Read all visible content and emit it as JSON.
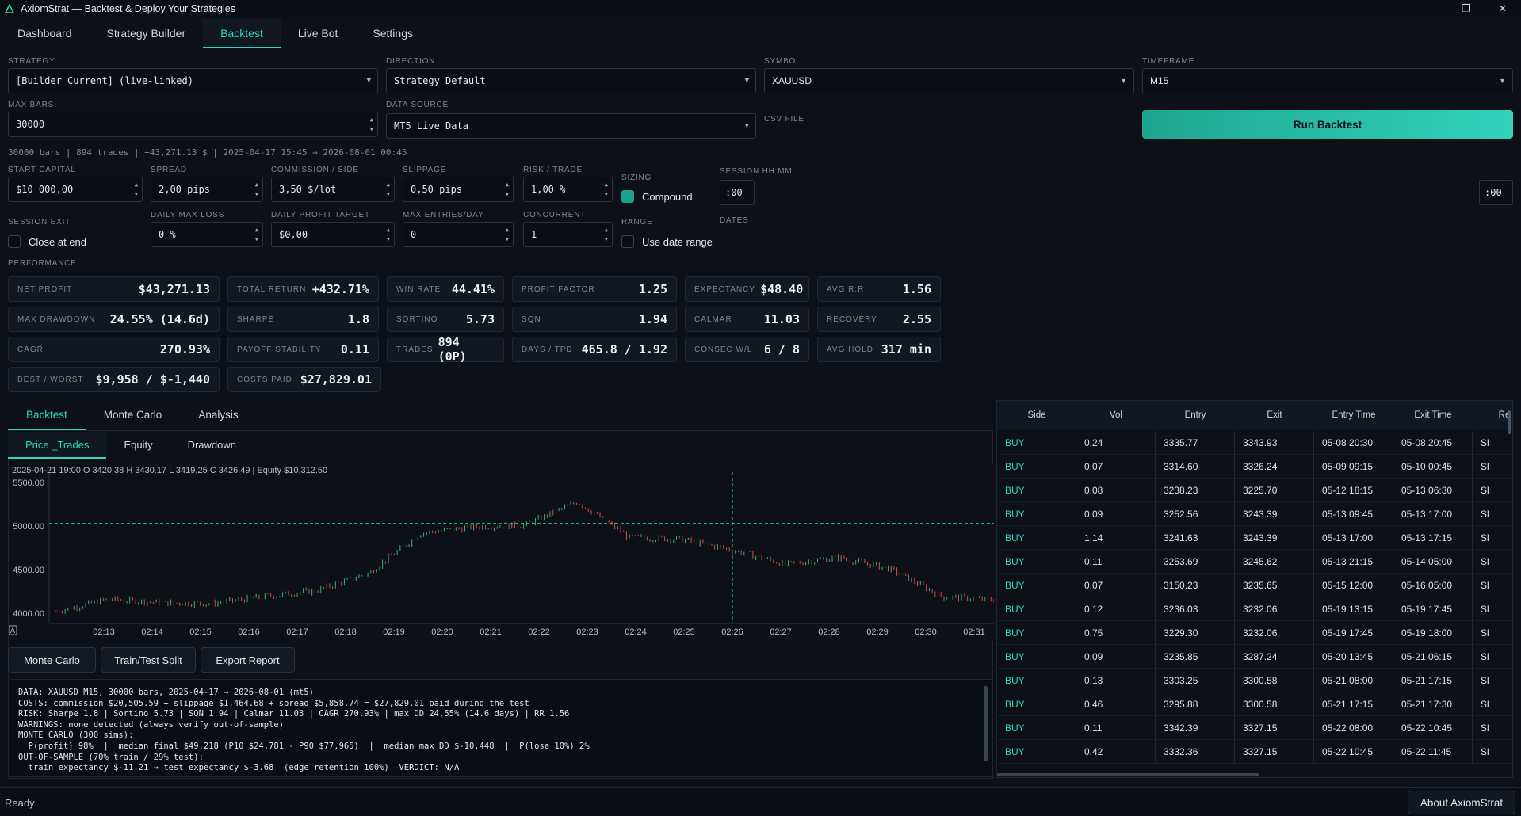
{
  "window": {
    "title": "AxiomStrat — Backtest & Deploy Your Strategies",
    "controls": [
      "—",
      "❐",
      "✕"
    ]
  },
  "top_tabs": [
    "Dashboard",
    "Strategy Builder",
    "Backtest",
    "Live Bot",
    "Settings"
  ],
  "active_top_tab": "Backtest",
  "form": {
    "strategy": {
      "label": "STRATEGY",
      "value": "[Builder Current]  (live-linked)"
    },
    "direction": {
      "label": "DIRECTION",
      "value": "Strategy Default"
    },
    "symbol": {
      "label": "SYMBOL",
      "value": "XAUUSD"
    },
    "timeframe": {
      "label": "TIMEFRAME",
      "value": "M15"
    },
    "max_bars": {
      "label": "MAX BARS",
      "value": "30000"
    },
    "data_source": {
      "label": "DATA SOURCE",
      "value": "MT5 Live Data"
    },
    "csv_file": {
      "label": "CSV FILE"
    },
    "run_button": "Run Backtest",
    "summary": "30000 bars | 894 trades | +43,271.13 $ | 2025-04-17 15:45 → 2026-08-01 00:45",
    "start_capital": {
      "label": "START CAPITAL",
      "value": "$10 000,00"
    },
    "spread": {
      "label": "SPREAD",
      "value": "2,00 pips"
    },
    "commission": {
      "label": "COMMISSION / SIDE",
      "value": "3,50 $/lot"
    },
    "slippage": {
      "label": "SLIPPAGE",
      "value": "0,50 pips"
    },
    "risk_trade": {
      "label": "RISK / TRADE",
      "value": "1,00 %"
    },
    "sizing": {
      "label": "SIZING",
      "value": "Compound"
    },
    "session": {
      "label": "SESSION HH:MM",
      "start": ":00",
      "sep": "–",
      "end": ":00"
    },
    "session_exit": {
      "label": "SESSION EXIT",
      "value": "Close at end"
    },
    "daily_max_loss": {
      "label": "DAILY MAX LOSS",
      "value": "0 %"
    },
    "daily_profit_target": {
      "label": "DAILY PROFIT TARGET",
      "value": "$0,00"
    },
    "max_entries": {
      "label": "MAX ENTRIES/DAY",
      "value": "0"
    },
    "concurrent": {
      "label": "CONCURRENT",
      "value": "1"
    },
    "range": {
      "label": "RANGE",
      "value": "Use date range"
    },
    "dates": {
      "label": "DATES"
    }
  },
  "performance": {
    "label": "PERFORMANCE",
    "cards": [
      {
        "k": "NET PROFIT",
        "v": "$43,271.13"
      },
      {
        "k": "TOTAL RETURN",
        "v": "+432.71%"
      },
      {
        "k": "WIN RATE",
        "v": "44.41%"
      },
      {
        "k": "PROFIT FACTOR",
        "v": "1.25"
      },
      {
        "k": "EXPECTANCY",
        "v": "$48.40"
      },
      {
        "k": "AVG R:R",
        "v": "1.56"
      },
      {
        "k": "MAX DRAWDOWN",
        "v": "24.55% (14.6d)"
      },
      {
        "k": "SHARPE",
        "v": "1.8"
      },
      {
        "k": "SORTINO",
        "v": "5.73"
      },
      {
        "k": "SQN",
        "v": "1.94"
      },
      {
        "k": "CALMAR",
        "v": "11.03"
      },
      {
        "k": "RECOVERY",
        "v": "2.55"
      },
      {
        "k": "CAGR",
        "v": "270.93%"
      },
      {
        "k": "PAYOFF STABILITY",
        "v": "0.11"
      },
      {
        "k": "TRADES",
        "v": "894 (0P)"
      },
      {
        "k": "DAYS / TPD",
        "v": "465.8 / 1.92"
      },
      {
        "k": "CONSEC W/L",
        "v": "6 / 8"
      },
      {
        "k": "AVG HOLD",
        "v": "317 min"
      },
      {
        "k": "BEST / WORST",
        "v": "$9,958 / $-1,440"
      },
      {
        "k": "COSTS PAID",
        "v": "$27,829.01"
      }
    ]
  },
  "lower_tabs": [
    "Backtest",
    "Monte Carlo",
    "Analysis"
  ],
  "chart_tabs": [
    "Price _Trades",
    "Equity",
    "Drawdown"
  ],
  "chart_data": {
    "type": "line",
    "ohlc_readout": "2025-04-21 19:00 O 3420.38 H 3430.17 L 3419.25 C 3426.49 | Equity $10,312.50",
    "x": [
      "02:13",
      "02:14",
      "02:15",
      "02:16",
      "02:17",
      "02:18",
      "02:19",
      "02:20",
      "02:21",
      "02:22",
      "02:23",
      "02:24",
      "02:25",
      "02:26",
      "02:27",
      "02:28",
      "02:29",
      "02:30",
      "02:31"
    ],
    "series": [
      {
        "values": [
          4020,
          4160,
          4120,
          4110,
          4190,
          4260,
          4460,
          4920,
          4990,
          5010,
          5280,
          4870,
          4850,
          4720,
          4560,
          4640,
          4510,
          4190,
          4150
        ]
      }
    ],
    "y_ticks": [
      "5500.00",
      "5000.00",
      "4500.00",
      "4000.00"
    ],
    "ylim": [
      3880,
      5620
    ],
    "reference_line": 5030,
    "crosshair_x": "02:26",
    "corner_marker": "A"
  },
  "actions": [
    "Monte Carlo",
    "Train/Test Split",
    "Export Report"
  ],
  "log_lines": [
    "DATA: XAUUSD M15, 30000 bars, 2025-04-17 → 2026-08-01 (mt5)",
    "COSTS: commission $20,505.59 + slippage $1,464.68 + spread $5,858.74 = $27,829.01 paid during the test",
    "RISK: Sharpe 1.8 | Sortino 5.73 | SQN 1.94 | Calmar 11.03 | CAGR 270.93% | max DD 24.55% (14.6 days) | RR 1.56",
    "WARNINGS: none detected (always verify out-of-sample)",
    "MONTE CARLO (300 sims):",
    "  P(profit) 98%  |  median final $49,218 (P10 $24,781 - P90 $77,965)  |  median max DD $-10,448  |  P(lose 10%) 2%",
    "OUT-OF-SAMPLE (70% train / 29% test):",
    "  train expectancy $-11.21 → test expectancy $-3.68  (edge retention 100%)  VERDICT: N/A"
  ],
  "trades": {
    "columns": [
      "Side",
      "Vol",
      "Entry",
      "Exit",
      "Entry Time",
      "Exit Time",
      "Re"
    ],
    "rows": [
      [
        "BUY",
        "0.24",
        "3335.77",
        "3343.93",
        "05-08 20:30",
        "05-08 20:45",
        "Sl"
      ],
      [
        "BUY",
        "0.07",
        "3314.60",
        "3326.24",
        "05-09 09:15",
        "05-10 00:45",
        "Sl"
      ],
      [
        "BUY",
        "0.08",
        "3238.23",
        "3225.70",
        "05-12 18:15",
        "05-13 06:30",
        "Sl"
      ],
      [
        "BUY",
        "0.09",
        "3252.56",
        "3243.39",
        "05-13 09:45",
        "05-13 17:00",
        "Sl"
      ],
      [
        "BUY",
        "1.14",
        "3241.63",
        "3243.39",
        "05-13 17:00",
        "05-13 17:15",
        "Sl"
      ],
      [
        "BUY",
        "0.11",
        "3253.69",
        "3245.62",
        "05-13 21:15",
        "05-14 05:00",
        "Sl"
      ],
      [
        "BUY",
        "0.07",
        "3150.23",
        "3235.65",
        "05-15 12:00",
        "05-16 05:00",
        "Sl"
      ],
      [
        "BUY",
        "0.12",
        "3236.03",
        "3232.06",
        "05-19 13:15",
        "05-19 17:45",
        "Sl"
      ],
      [
        "BUY",
        "0.75",
        "3229.30",
        "3232.06",
        "05-19 17:45",
        "05-19 18:00",
        "Sl"
      ],
      [
        "BUY",
        "0.09",
        "3235.85",
        "3287.24",
        "05-20 13:45",
        "05-21 06:15",
        "Sl"
      ],
      [
        "BUY",
        "0.13",
        "3303.25",
        "3300.58",
        "05-21 08:00",
        "05-21 17:15",
        "Sl"
      ],
      [
        "BUY",
        "0.46",
        "3295.88",
        "3300.58",
        "05-21 17:15",
        "05-21 17:30",
        "Sl"
      ],
      [
        "BUY",
        "0.11",
        "3342.39",
        "3327.15",
        "05-22 08:00",
        "05-22 10:45",
        "Sl"
      ],
      [
        "BUY",
        "0.42",
        "3332.36",
        "3327.15",
        "05-22 10:45",
        "05-22 11:45",
        "Sl"
      ]
    ]
  },
  "status": "Ready",
  "about_button": "About AxiomStrat",
  "colors": {
    "accent": "#2dd4bf",
    "background": "#0d1117",
    "up_candle": "#2bb673",
    "down_candle": "#e04848"
  }
}
